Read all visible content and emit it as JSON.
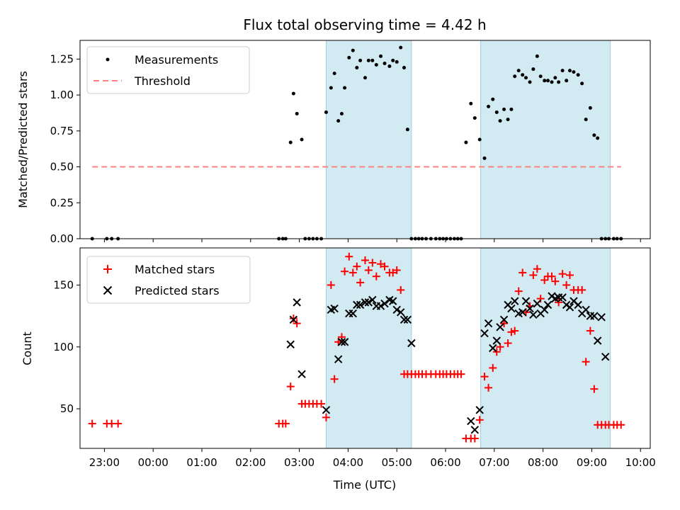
{
  "title": "Flux total observing time = 4.42 h",
  "colors": {
    "threshold": "#ff8080",
    "band": "#add8e6",
    "matched": "#ff0000",
    "predicted": "#000000",
    "measure": "#000000"
  },
  "xaxis": {
    "label": "Time (UTC)",
    "min": -1.5,
    "max": 10.2,
    "ticks": [
      -1,
      0,
      1,
      2,
      3,
      4,
      5,
      6,
      7,
      8,
      9,
      10
    ],
    "tick_labels": [
      "23:00",
      "00:00",
      "01:00",
      "02:00",
      "03:00",
      "04:00",
      "05:00",
      "06:00",
      "07:00",
      "08:00",
      "09:00",
      "10:00"
    ]
  },
  "bands": [
    [
      3.55,
      5.3
    ],
    [
      6.72,
      9.38
    ]
  ],
  "chart_data": [
    {
      "type": "scatter",
      "ylabel": "Matched/Predicted stars",
      "ylim": [
        0,
        1.38
      ],
      "yticks": [
        0,
        0.25,
        0.5,
        0.75,
        1.0,
        1.25
      ],
      "ytick_labels": [
        "0.00",
        "0.25",
        "0.50",
        "0.75",
        "1.00",
        "1.25"
      ],
      "threshold": {
        "name": "Threshold",
        "value": 0.5,
        "x": [
          -1.25,
          9.6
        ]
      },
      "series": [
        {
          "name": "Measurements",
          "x": [
            -1.25,
            -0.95,
            -0.85,
            -0.72,
            2.58,
            2.66,
            2.72,
            2.82,
            2.88,
            2.95,
            3.05,
            3.12,
            3.2,
            3.28,
            3.36,
            3.45,
            3.55,
            3.65,
            3.72,
            3.8,
            3.87,
            3.93,
            4.02,
            4.1,
            4.18,
            4.25,
            4.35,
            4.42,
            4.5,
            4.58,
            4.67,
            4.75,
            4.85,
            4.92,
            5.0,
            5.08,
            5.15,
            5.22,
            5.3,
            5.38,
            5.45,
            5.52,
            5.6,
            5.7,
            5.8,
            5.88,
            5.95,
            6.02,
            6.1,
            6.18,
            6.25,
            6.32,
            6.42,
            6.52,
            6.6,
            6.7,
            6.8,
            6.88,
            6.97,
            7.05,
            7.12,
            7.2,
            7.28,
            7.35,
            7.42,
            7.5,
            7.58,
            7.65,
            7.73,
            7.8,
            7.88,
            7.95,
            8.03,
            8.1,
            8.18,
            8.25,
            8.32,
            8.4,
            8.48,
            8.55,
            8.63,
            8.72,
            8.8,
            8.88,
            8.97,
            9.05,
            9.12,
            9.2,
            9.28,
            9.35,
            9.45,
            9.52,
            9.6
          ],
          "y": [
            0,
            0,
            0,
            0,
            0,
            0,
            0,
            0.67,
            1.01,
            0.87,
            0.69,
            0,
            0,
            0,
            0,
            0,
            0.88,
            1.05,
            1.15,
            0.82,
            0.87,
            1.05,
            1.26,
            1.31,
            1.19,
            1.24,
            1.12,
            1.24,
            1.24,
            1.21,
            1.27,
            1.22,
            1.2,
            1.24,
            1.23,
            1.33,
            1.19,
            0.76,
            0,
            0,
            0,
            0,
            0,
            0,
            0,
            0,
            0,
            0,
            0,
            0,
            0,
            0,
            0.67,
            0.94,
            0.84,
            0.69,
            0.56,
            0.92,
            0.97,
            0.88,
            0.82,
            0.9,
            0.83,
            0.9,
            1.13,
            1.17,
            1.14,
            1.12,
            1.09,
            1.18,
            1.27,
            1.13,
            1.1,
            1.1,
            1.09,
            1.12,
            1.09,
            1.17,
            1.1,
            1.17,
            1.16,
            1.14,
            1.08,
            0.83,
            0.91,
            0.72,
            0.7,
            0,
            0,
            0,
            0,
            0,
            0
          ]
        }
      ],
      "legend": [
        "Measurements",
        "Threshold"
      ]
    },
    {
      "type": "scatter",
      "ylabel": "Count",
      "ylim": [
        18,
        180
      ],
      "yticks": [
        50,
        100,
        150
      ],
      "ytick_labels": [
        "50",
        "100",
        "150"
      ],
      "series": [
        {
          "name": "Matched stars",
          "x": [
            -1.25,
            -0.95,
            -0.85,
            -0.72,
            2.58,
            2.66,
            2.72,
            2.82,
            2.88,
            2.95,
            3.05,
            3.12,
            3.2,
            3.28,
            3.36,
            3.45,
            3.55,
            3.65,
            3.72,
            3.8,
            3.87,
            3.93,
            4.02,
            4.1,
            4.18,
            4.25,
            4.35,
            4.42,
            4.5,
            4.58,
            4.67,
            4.75,
            4.85,
            4.92,
            5.0,
            5.08,
            5.15,
            5.22,
            5.3,
            5.38,
            5.45,
            5.52,
            5.6,
            5.7,
            5.8,
            5.88,
            5.95,
            6.02,
            6.1,
            6.18,
            6.25,
            6.32,
            6.42,
            6.52,
            6.6,
            6.7,
            6.8,
            6.88,
            6.97,
            7.05,
            7.12,
            7.2,
            7.28,
            7.35,
            7.42,
            7.5,
            7.58,
            7.65,
            7.73,
            7.8,
            7.88,
            7.95,
            8.03,
            8.1,
            8.18,
            8.25,
            8.32,
            8.4,
            8.48,
            8.55,
            8.63,
            8.72,
            8.8,
            8.88,
            8.97,
            9.05,
            9.12,
            9.2,
            9.28,
            9.35,
            9.45,
            9.52,
            9.6
          ],
          "y": [
            38,
            38,
            38,
            38,
            38,
            38,
            38,
            68,
            123,
            119,
            54,
            54,
            54,
            54,
            54,
            54,
            43,
            150,
            74,
            104,
            108,
            161,
            173,
            160,
            165,
            152,
            170,
            162,
            168,
            157,
            167,
            165,
            160,
            160,
            162,
            146,
            78,
            78,
            78,
            78,
            78,
            78,
            78,
            78,
            78,
            78,
            78,
            78,
            78,
            78,
            78,
            78,
            26,
            26,
            26,
            41,
            76,
            67,
            83,
            96,
            100,
            119,
            103,
            112,
            113,
            145,
            160,
            128,
            133,
            158,
            163,
            139,
            154,
            157,
            157,
            153,
            136,
            159,
            150,
            158,
            146,
            146,
            146,
            88,
            113,
            66,
            37,
            37,
            37,
            37,
            37,
            37,
            37
          ]
        },
        {
          "name": "Predicted stars",
          "x": [
            2.82,
            2.88,
            2.95,
            3.05,
            3.55,
            3.65,
            3.72,
            3.8,
            3.87,
            3.93,
            4.02,
            4.1,
            4.18,
            4.25,
            4.35,
            4.42,
            4.5,
            4.58,
            4.67,
            4.75,
            4.85,
            4.92,
            5.0,
            5.08,
            5.15,
            5.22,
            5.3,
            6.52,
            6.6,
            6.7,
            6.8,
            6.88,
            6.97,
            7.05,
            7.12,
            7.2,
            7.28,
            7.35,
            7.42,
            7.5,
            7.58,
            7.65,
            7.73,
            7.8,
            7.88,
            7.95,
            8.03,
            8.1,
            8.18,
            8.25,
            8.32,
            8.4,
            8.48,
            8.55,
            8.63,
            8.72,
            8.8,
            8.88,
            8.97,
            9.05,
            9.12,
            9.2,
            9.28
          ],
          "y": [
            102,
            122,
            136,
            78,
            49,
            130,
            131,
            90,
            104,
            104,
            127,
            127,
            134,
            134,
            136,
            136,
            138,
            133,
            133,
            135,
            138,
            137,
            130,
            128,
            122,
            122,
            103,
            40,
            33,
            49,
            111,
            119,
            99,
            105,
            116,
            122,
            134,
            131,
            137,
            127,
            128,
            137,
            131,
            126,
            135,
            127,
            130,
            134,
            141,
            139,
            140,
            140,
            134,
            132,
            137,
            134,
            127,
            130,
            125,
            125,
            105,
            124,
            92
          ]
        }
      ],
      "legend": [
        "Matched stars",
        "Predicted stars"
      ]
    }
  ]
}
